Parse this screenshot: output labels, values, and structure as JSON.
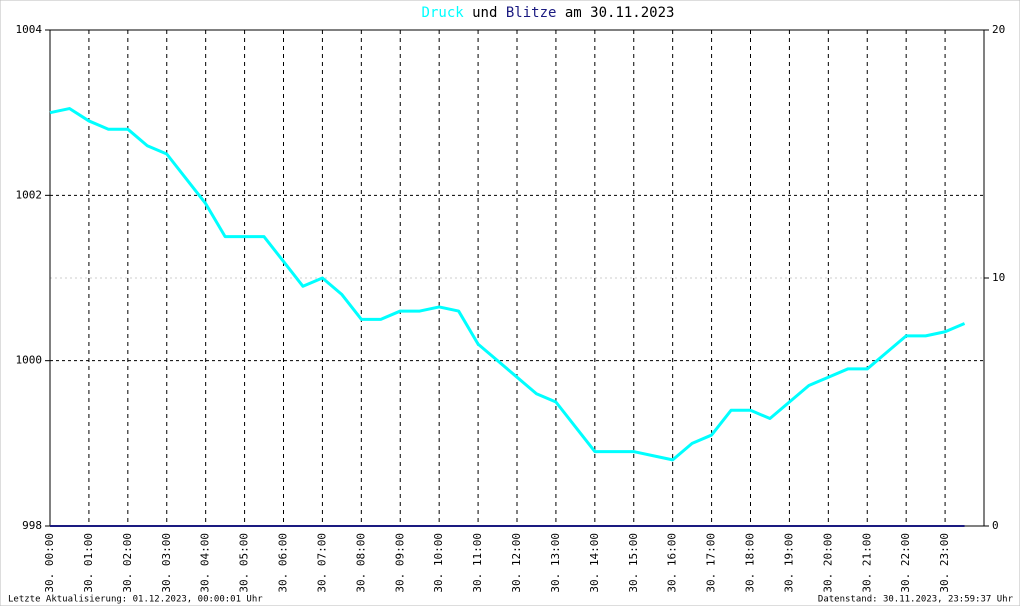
{
  "chart_data": {
    "type": "line",
    "title_middle": "und",
    "title_end": "am 30.11.2023",
    "categories": [
      "30. 00:00",
      null,
      "30. 01:00",
      null,
      "30. 02:00",
      null,
      "30. 03:00",
      null,
      "30. 04:00",
      null,
      "30. 05:00",
      null,
      "30. 06:00",
      null,
      "30. 07:00",
      null,
      "30. 08:00",
      null,
      "30. 09:00",
      null,
      "30. 10:00",
      null,
      "30. 11:00",
      null,
      "30. 12:00",
      null,
      "30. 13:00",
      null,
      "30. 14:00",
      null,
      "30. 15:00",
      null,
      "30. 16:00",
      null,
      "30. 17:00",
      null,
      "30. 18:00",
      null,
      "30. 19:00",
      null,
      "30. 20:00",
      null,
      "30. 21:00",
      null,
      "30. 22:00",
      null,
      "30. 23:00",
      null
    ],
    "series": [
      {
        "name": "Druck",
        "color": "#00ffff",
        "values": [
          1003.0,
          1003.05,
          1002.9,
          1002.8,
          1002.8,
          1002.6,
          1002.5,
          1002.2,
          1001.9,
          1001.5,
          1001.5,
          1001.5,
          1001.2,
          1000.9,
          1001.0,
          1000.8,
          1000.5,
          1000.5,
          1000.6,
          1000.6,
          1000.65,
          1000.6,
          1000.2,
          1000.0,
          999.8,
          999.6,
          999.5,
          999.2,
          998.9,
          998.9,
          998.9,
          998.85,
          998.8,
          999.0,
          999.1,
          999.4,
          999.4,
          999.3,
          999.5,
          999.7,
          999.8,
          999.9,
          999.9,
          1000.1,
          1000.3,
          1000.3,
          1000.35,
          1000.45
        ]
      },
      {
        "name": "Blitze",
        "color": "#1a1a80",
        "axis": "y2",
        "values": [
          0,
          0,
          0,
          0,
          0,
          0,
          0,
          0,
          0,
          0,
          0,
          0,
          0,
          0,
          0,
          0,
          0,
          0,
          0,
          0,
          0,
          0,
          0,
          0,
          0,
          0,
          0,
          0,
          0,
          0,
          0,
          0,
          0,
          0,
          0,
          0,
          0,
          0,
          0,
          0,
          0,
          0,
          0,
          0,
          0,
          0,
          0,
          0
        ]
      }
    ],
    "ylim": [
      998,
      1004
    ],
    "yticks": [
      998,
      1000,
      1002,
      1004
    ],
    "y2lim": [
      0,
      20
    ],
    "y2ticks": [
      0,
      10,
      20
    ],
    "grid": true,
    "footer_left": "Letzte Aktualisierung: 01.12.2023, 00:00:01 Uhr",
    "footer_right": "Datenstand: 30.11.2023, 23:59:37 Uhr"
  }
}
